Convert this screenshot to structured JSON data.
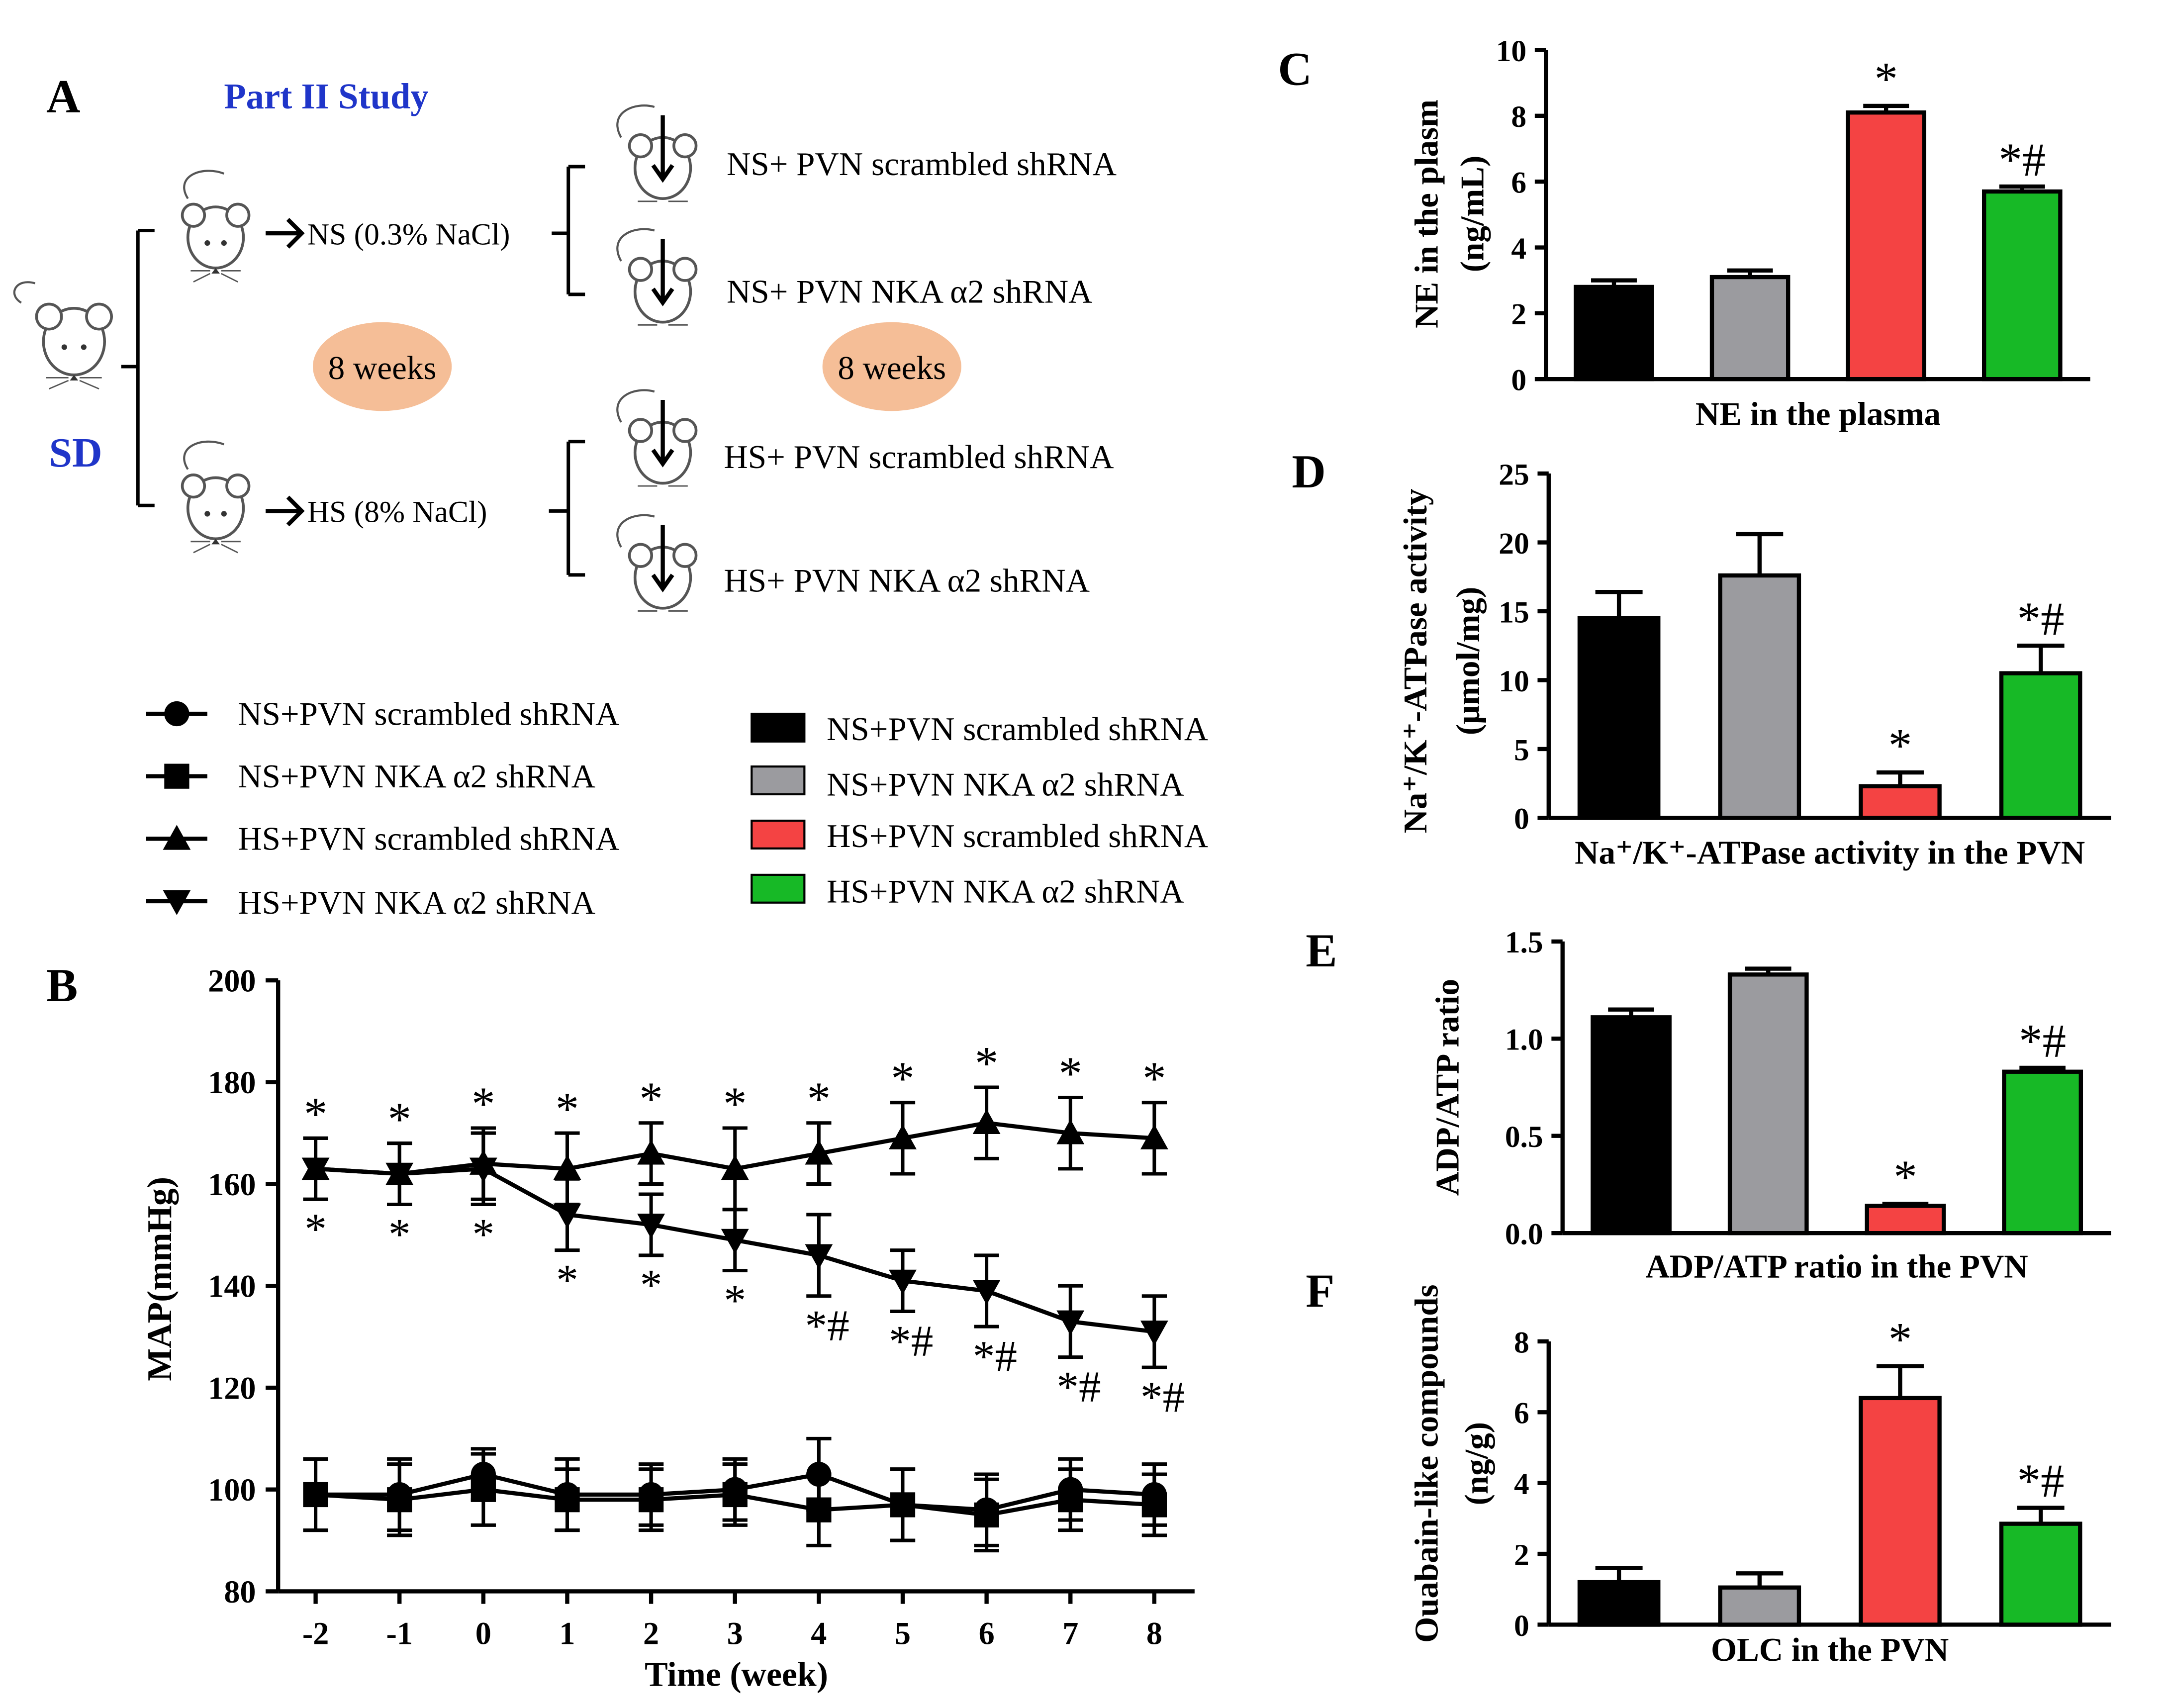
{
  "panels": {
    "a": "A",
    "b": "B",
    "c": "C",
    "d": "D",
    "e": "E",
    "f": "F"
  },
  "schematic": {
    "title": "Part II   Study",
    "strain": "SD",
    "duration_label": "8 weeks",
    "ns_label": "NS (0.3% NaCl)",
    "hs_label": "HS (8% NaCl)",
    "groups": [
      "NS+ PVN scrambled shRNA",
      "NS+ PVN NKA α2 shRNA",
      "HS+ PVN scrambled shRNA",
      "HS+ PVN NKA α2 shRNA"
    ]
  },
  "legend_lines": [
    {
      "label": "NS+PVN scrambled shRNA",
      "marker": "circle"
    },
    {
      "label": "NS+PVN NKA α2 shRNA",
      "marker": "square"
    },
    {
      "label": "HS+PVN scrambled shRNA",
      "marker": "triangle-up"
    },
    {
      "label": "HS+PVN NKA α2 shRNA",
      "marker": "triangle-down"
    }
  ],
  "legend_bars": [
    {
      "label": "NS+PVN scrambled shRNA",
      "color": "#000000"
    },
    {
      "label": "NS+PVN NKA α2 shRNA",
      "color": "#9b9b9f"
    },
    {
      "label": "HS+PVN scrambled shRNA",
      "color": "#f44343"
    },
    {
      "label": "HS+PVN NKA α2 shRNA",
      "color": "#17b926"
    }
  ],
  "chart_data": [
    {
      "panel": "B",
      "type": "line",
      "xlabel": "Time (week)",
      "ylabel": "MAP(mmHg)",
      "x": [
        -2,
        -1,
        0,
        1,
        2,
        3,
        4,
        5,
        6,
        7,
        8
      ],
      "x_tick_labels": [
        "-2",
        "-1",
        "0",
        "1",
        "2",
        "3",
        "4",
        "5",
        "6",
        "7",
        "8"
      ],
      "ylim": [
        80,
        200
      ],
      "yticks": [
        "80",
        "100",
        "120",
        "140",
        "160",
        "180",
        "200"
      ],
      "series": [
        {
          "name": "NS+PVN scrambled shRNA",
          "marker": "circle",
          "values": [
            99,
            99,
            103,
            99,
            99,
            100,
            103,
            97,
            96,
            100,
            99
          ],
          "errors": [
            7,
            7,
            5,
            7,
            6,
            6,
            7,
            7,
            7,
            6,
            6
          ],
          "annotations": [
            "",
            "",
            "",
            "",
            "",
            "",
            "",
            "",
            "",
            "",
            ""
          ]
        },
        {
          "name": "NS+PVN NKA α2 shRNA",
          "marker": "square",
          "values": [
            99,
            98,
            100,
            98,
            98,
            99,
            96,
            97,
            95,
            98,
            97
          ],
          "errors": [
            7,
            7,
            7,
            6,
            6,
            6,
            7,
            7,
            7,
            6,
            6
          ],
          "annotations": [
            "",
            "",
            "",
            "",
            "",
            "",
            "",
            "",
            "",
            "",
            ""
          ]
        },
        {
          "name": "HS+PVN scrambled shRNA",
          "marker": "triangle-up",
          "values": [
            163,
            162,
            164,
            163,
            166,
            163,
            166,
            169,
            172,
            170,
            169
          ],
          "errors": [
            6,
            6,
            7,
            7,
            6,
            8,
            6,
            7,
            7,
            7,
            7
          ],
          "annotations": [
            "*",
            "*",
            "*",
            "*",
            "*",
            "*",
            "*",
            "*",
            "*",
            "*",
            "*"
          ]
        },
        {
          "name": "HS+PVN NKA α2 shRNA",
          "marker": "triangle-down",
          "values": [
            163,
            162,
            163,
            154,
            152,
            149,
            146,
            141,
            139,
            133,
            131
          ],
          "errors": [
            6,
            6,
            7,
            7,
            6,
            6,
            8,
            6,
            7,
            7,
            7
          ],
          "annotations": [
            "*",
            "*",
            "*",
            "*",
            "*",
            "*",
            "*#",
            "*#",
            "*#",
            "*#",
            "*#"
          ]
        }
      ]
    },
    {
      "panel": "C",
      "type": "bar",
      "title": "NE in the plasma",
      "ylabel": "NE in the plasm",
      "ylabel_unit": "(ng/mL)",
      "ylim": [
        0,
        10
      ],
      "yticks": [
        "0",
        "2",
        "4",
        "6",
        "8",
        "10"
      ],
      "categories": [
        "NS+PVN scrambled shRNA",
        "NS+PVN NKA α2 shRNA",
        "HS+PVN scrambled shRNA",
        "HS+PVN NKA α2 shRNA"
      ],
      "values": [
        2.8,
        3.1,
        8.1,
        5.7
      ],
      "errors": [
        0.2,
        0.2,
        0.2,
        0.15
      ],
      "annotations": [
        "",
        "",
        "*",
        "*#"
      ]
    },
    {
      "panel": "D",
      "type": "bar",
      "title": "Na⁺/K⁺-ATPase activity in the PVN",
      "ylabel": "Na⁺/K⁺-ATPase activity",
      "ylabel_unit": "(μmol/mg)",
      "ylim": [
        0,
        25
      ],
      "yticks": [
        "0",
        "5",
        "10",
        "15",
        "20",
        "25"
      ],
      "categories": [
        "NS+PVN scrambled shRNA",
        "NS+PVN NKA α2 shRNA",
        "HS+PVN scrambled shRNA",
        "HS+PVN NKA α2 shRNA"
      ],
      "values": [
        14.5,
        17.6,
        2.3,
        10.5
      ],
      "errors": [
        1.9,
        3.0,
        1.0,
        2.0
      ],
      "annotations": [
        "",
        "",
        "*",
        "*#"
      ]
    },
    {
      "panel": "E",
      "type": "bar",
      "title": "ADP/ATP  ratio in the PVN",
      "ylabel": "ADP/ATP ratio",
      "ylabel_unit": "",
      "ylim": [
        0,
        1.5
      ],
      "yticks": [
        "0.0",
        "0.5",
        "1.0",
        "1.5"
      ],
      "categories": [
        "NS+PVN scrambled shRNA",
        "NS+PVN NKA α2 shRNA",
        "HS+PVN scrambled shRNA",
        "HS+PVN NKA α2 shRNA"
      ],
      "values": [
        1.11,
        1.33,
        0.14,
        0.83
      ],
      "errors": [
        0.04,
        0.03,
        0.01,
        0.02
      ],
      "annotations": [
        "",
        "",
        "*",
        "*#"
      ]
    },
    {
      "panel": "F",
      "type": "bar",
      "title": "OLC in the PVN",
      "ylabel": "Ouabain-like compounds",
      "ylabel_unit": "(ng/g)",
      "ylim": [
        0,
        8
      ],
      "yticks": [
        "0",
        "2",
        "4",
        "6",
        "8"
      ],
      "categories": [
        "NS+PVN scrambled shRNA",
        "NS+PVN NKA α2 shRNA",
        "HS+PVN scrambled shRNA",
        "HS+PVN NKA α2 shRNA"
      ],
      "values": [
        1.2,
        1.05,
        6.4,
        2.85
      ],
      "errors": [
        0.4,
        0.4,
        0.9,
        0.45
      ],
      "annotations": [
        "",
        "",
        "*",
        "*#"
      ]
    }
  ]
}
